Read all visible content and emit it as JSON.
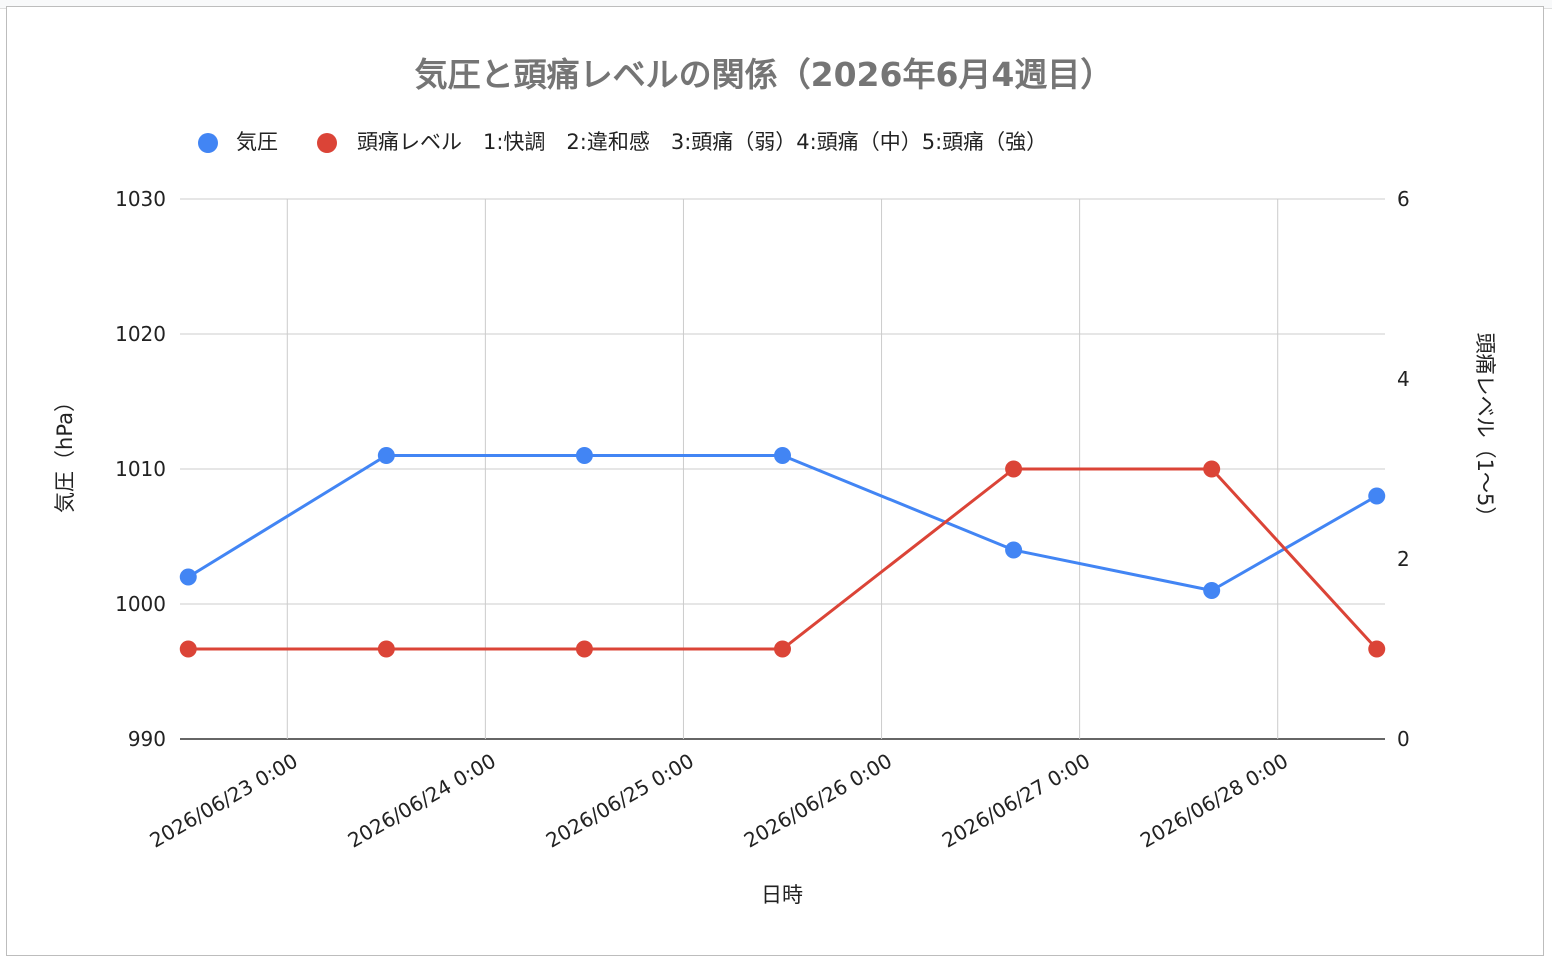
{
  "chart_data": {
    "type": "line",
    "title": "気圧と頭痛レベルの関係（2026年6月4週目）",
    "xlabel": "日時",
    "ylabel_left": "気圧（hPa）",
    "ylabel_right": "頭痛レベル（1〜5）",
    "x_tick_labels": [
      "2026/06/23 0:00",
      "2026/06/24 0:00",
      "2026/06/25 0:00",
      "2026/06/26 0:00",
      "2026/06/27 0:00",
      "2026/06/28 0:00"
    ],
    "x_ticks": [
      "2026-06-23T00:00",
      "2026-06-24T00:00",
      "2026-06-25T00:00",
      "2026-06-26T00:00",
      "2026-06-27T00:00",
      "2026-06-28T00:00"
    ],
    "x": [
      "2026-06-22T12:00",
      "2026-06-23T12:00",
      "2026-06-24T12:00",
      "2026-06-25T12:00",
      "2026-06-26T16:00",
      "2026-06-27T16:00",
      "2026-06-28T12:00"
    ],
    "x_range": [
      "2026-06-22T11:00",
      "2026-06-28T13:00"
    ],
    "y_left_range": [
      990,
      1030
    ],
    "y_left_ticks": [
      "990",
      "1000",
      "1010",
      "1020",
      "1030"
    ],
    "y_right_range": [
      0,
      6
    ],
    "y_right_ticks": [
      "0",
      "2",
      "4",
      "6"
    ],
    "series": [
      {
        "name": "気圧",
        "axis": "left",
        "color": "#4285f4",
        "values": [
          1002,
          1011,
          1011,
          1011,
          1004,
          1001,
          1008
        ]
      },
      {
        "name": "頭痛レベル　1:快調　2:違和感　3:頭痛（弱）4:頭痛（中）5:頭痛（強）",
        "axis": "right",
        "color": "#db4437",
        "values": [
          1,
          1,
          1,
          1,
          3,
          3,
          1
        ]
      }
    ],
    "grid": true,
    "legend_position": "top-left"
  }
}
